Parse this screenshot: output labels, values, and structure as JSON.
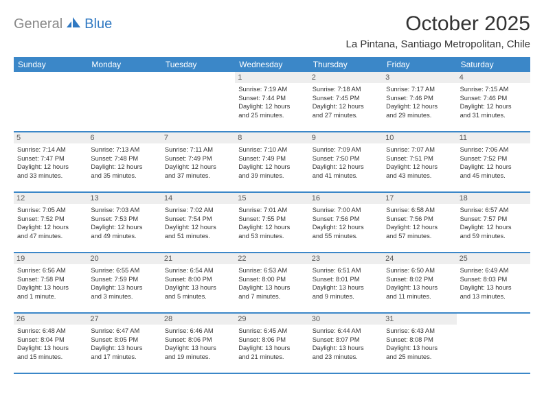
{
  "logo": {
    "text1": "General",
    "text2": "Blue"
  },
  "title": "October 2025",
  "location": "La Pintana, Santiago Metropolitan, Chile",
  "weekdays": [
    "Sunday",
    "Monday",
    "Tuesday",
    "Wednesday",
    "Thursday",
    "Friday",
    "Saturday"
  ],
  "colors": {
    "header_bar": "#3b87c8",
    "daynum_bg": "#eeeeee",
    "divider": "#3b87c8",
    "logo_gray": "#888888",
    "logo_blue": "#2f78c2",
    "text": "#333333",
    "background": "#ffffff"
  },
  "typography": {
    "title_fontsize": 30,
    "location_fontsize": 15,
    "weekday_fontsize": 12,
    "daynum_fontsize": 11,
    "detail_fontsize": 9.3,
    "logo_fontsize": 20
  },
  "layout": {
    "columns": 7,
    "rows": 5,
    "cell_min_height": 86
  },
  "weeks": [
    [
      {
        "empty": true
      },
      {
        "empty": true
      },
      {
        "empty": true
      },
      {
        "day": "1",
        "sunrise": "Sunrise: 7:19 AM",
        "sunset": "Sunset: 7:44 PM",
        "daylight1": "Daylight: 12 hours",
        "daylight2": "and 25 minutes."
      },
      {
        "day": "2",
        "sunrise": "Sunrise: 7:18 AM",
        "sunset": "Sunset: 7:45 PM",
        "daylight1": "Daylight: 12 hours",
        "daylight2": "and 27 minutes."
      },
      {
        "day": "3",
        "sunrise": "Sunrise: 7:17 AM",
        "sunset": "Sunset: 7:46 PM",
        "daylight1": "Daylight: 12 hours",
        "daylight2": "and 29 minutes."
      },
      {
        "day": "4",
        "sunrise": "Sunrise: 7:15 AM",
        "sunset": "Sunset: 7:46 PM",
        "daylight1": "Daylight: 12 hours",
        "daylight2": "and 31 minutes."
      }
    ],
    [
      {
        "day": "5",
        "sunrise": "Sunrise: 7:14 AM",
        "sunset": "Sunset: 7:47 PM",
        "daylight1": "Daylight: 12 hours",
        "daylight2": "and 33 minutes."
      },
      {
        "day": "6",
        "sunrise": "Sunrise: 7:13 AM",
        "sunset": "Sunset: 7:48 PM",
        "daylight1": "Daylight: 12 hours",
        "daylight2": "and 35 minutes."
      },
      {
        "day": "7",
        "sunrise": "Sunrise: 7:11 AM",
        "sunset": "Sunset: 7:49 PM",
        "daylight1": "Daylight: 12 hours",
        "daylight2": "and 37 minutes."
      },
      {
        "day": "8",
        "sunrise": "Sunrise: 7:10 AM",
        "sunset": "Sunset: 7:49 PM",
        "daylight1": "Daylight: 12 hours",
        "daylight2": "and 39 minutes."
      },
      {
        "day": "9",
        "sunrise": "Sunrise: 7:09 AM",
        "sunset": "Sunset: 7:50 PM",
        "daylight1": "Daylight: 12 hours",
        "daylight2": "and 41 minutes."
      },
      {
        "day": "10",
        "sunrise": "Sunrise: 7:07 AM",
        "sunset": "Sunset: 7:51 PM",
        "daylight1": "Daylight: 12 hours",
        "daylight2": "and 43 minutes."
      },
      {
        "day": "11",
        "sunrise": "Sunrise: 7:06 AM",
        "sunset": "Sunset: 7:52 PM",
        "daylight1": "Daylight: 12 hours",
        "daylight2": "and 45 minutes."
      }
    ],
    [
      {
        "day": "12",
        "sunrise": "Sunrise: 7:05 AM",
        "sunset": "Sunset: 7:52 PM",
        "daylight1": "Daylight: 12 hours",
        "daylight2": "and 47 minutes."
      },
      {
        "day": "13",
        "sunrise": "Sunrise: 7:03 AM",
        "sunset": "Sunset: 7:53 PM",
        "daylight1": "Daylight: 12 hours",
        "daylight2": "and 49 minutes."
      },
      {
        "day": "14",
        "sunrise": "Sunrise: 7:02 AM",
        "sunset": "Sunset: 7:54 PM",
        "daylight1": "Daylight: 12 hours",
        "daylight2": "and 51 minutes."
      },
      {
        "day": "15",
        "sunrise": "Sunrise: 7:01 AM",
        "sunset": "Sunset: 7:55 PM",
        "daylight1": "Daylight: 12 hours",
        "daylight2": "and 53 minutes."
      },
      {
        "day": "16",
        "sunrise": "Sunrise: 7:00 AM",
        "sunset": "Sunset: 7:56 PM",
        "daylight1": "Daylight: 12 hours",
        "daylight2": "and 55 minutes."
      },
      {
        "day": "17",
        "sunrise": "Sunrise: 6:58 AM",
        "sunset": "Sunset: 7:56 PM",
        "daylight1": "Daylight: 12 hours",
        "daylight2": "and 57 minutes."
      },
      {
        "day": "18",
        "sunrise": "Sunrise: 6:57 AM",
        "sunset": "Sunset: 7:57 PM",
        "daylight1": "Daylight: 12 hours",
        "daylight2": "and 59 minutes."
      }
    ],
    [
      {
        "day": "19",
        "sunrise": "Sunrise: 6:56 AM",
        "sunset": "Sunset: 7:58 PM",
        "daylight1": "Daylight: 13 hours",
        "daylight2": "and 1 minute."
      },
      {
        "day": "20",
        "sunrise": "Sunrise: 6:55 AM",
        "sunset": "Sunset: 7:59 PM",
        "daylight1": "Daylight: 13 hours",
        "daylight2": "and 3 minutes."
      },
      {
        "day": "21",
        "sunrise": "Sunrise: 6:54 AM",
        "sunset": "Sunset: 8:00 PM",
        "daylight1": "Daylight: 13 hours",
        "daylight2": "and 5 minutes."
      },
      {
        "day": "22",
        "sunrise": "Sunrise: 6:53 AM",
        "sunset": "Sunset: 8:00 PM",
        "daylight1": "Daylight: 13 hours",
        "daylight2": "and 7 minutes."
      },
      {
        "day": "23",
        "sunrise": "Sunrise: 6:51 AM",
        "sunset": "Sunset: 8:01 PM",
        "daylight1": "Daylight: 13 hours",
        "daylight2": "and 9 minutes."
      },
      {
        "day": "24",
        "sunrise": "Sunrise: 6:50 AM",
        "sunset": "Sunset: 8:02 PM",
        "daylight1": "Daylight: 13 hours",
        "daylight2": "and 11 minutes."
      },
      {
        "day": "25",
        "sunrise": "Sunrise: 6:49 AM",
        "sunset": "Sunset: 8:03 PM",
        "daylight1": "Daylight: 13 hours",
        "daylight2": "and 13 minutes."
      }
    ],
    [
      {
        "day": "26",
        "sunrise": "Sunrise: 6:48 AM",
        "sunset": "Sunset: 8:04 PM",
        "daylight1": "Daylight: 13 hours",
        "daylight2": "and 15 minutes."
      },
      {
        "day": "27",
        "sunrise": "Sunrise: 6:47 AM",
        "sunset": "Sunset: 8:05 PM",
        "daylight1": "Daylight: 13 hours",
        "daylight2": "and 17 minutes."
      },
      {
        "day": "28",
        "sunrise": "Sunrise: 6:46 AM",
        "sunset": "Sunset: 8:06 PM",
        "daylight1": "Daylight: 13 hours",
        "daylight2": "and 19 minutes."
      },
      {
        "day": "29",
        "sunrise": "Sunrise: 6:45 AM",
        "sunset": "Sunset: 8:06 PM",
        "daylight1": "Daylight: 13 hours",
        "daylight2": "and 21 minutes."
      },
      {
        "day": "30",
        "sunrise": "Sunrise: 6:44 AM",
        "sunset": "Sunset: 8:07 PM",
        "daylight1": "Daylight: 13 hours",
        "daylight2": "and 23 minutes."
      },
      {
        "day": "31",
        "sunrise": "Sunrise: 6:43 AM",
        "sunset": "Sunset: 8:08 PM",
        "daylight1": "Daylight: 13 hours",
        "daylight2": "and 25 minutes."
      },
      {
        "empty": true
      }
    ]
  ]
}
